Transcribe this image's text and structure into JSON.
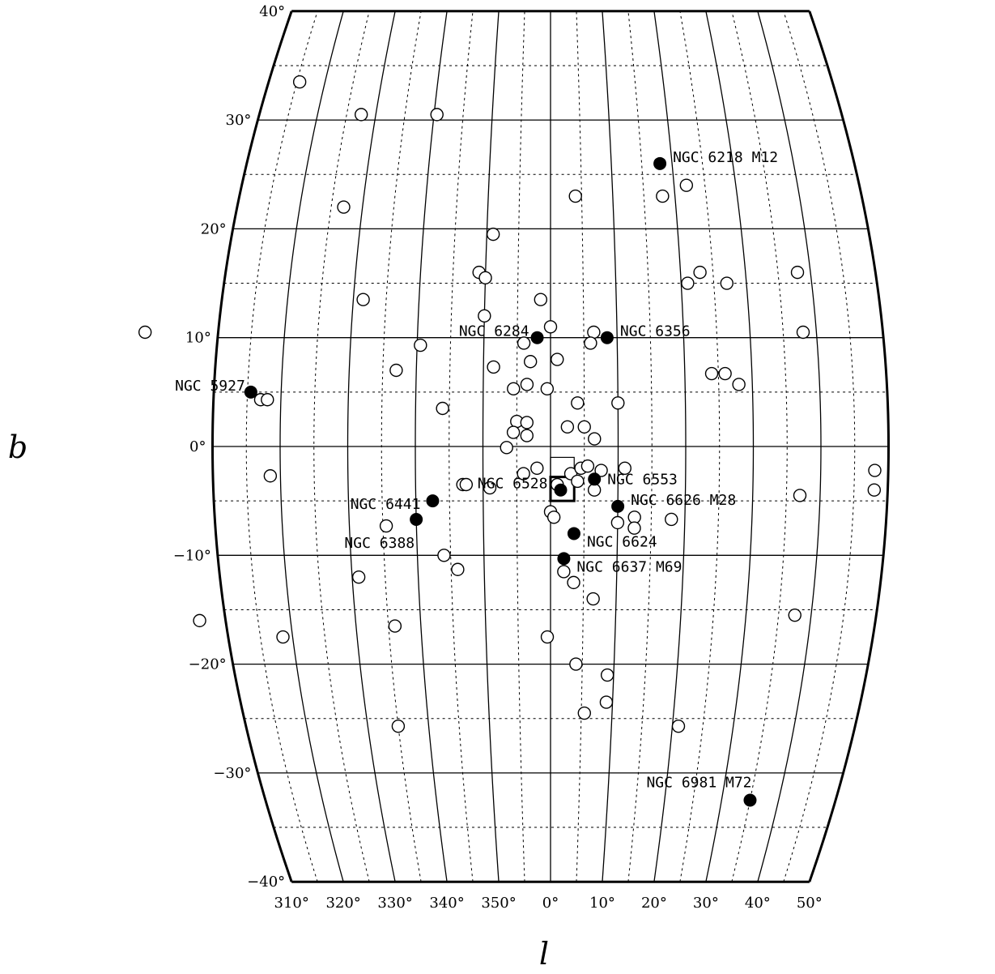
{
  "chart_data": {
    "type": "scatter",
    "projection": "sinusoidal",
    "xlabel": "l",
    "ylabel": "b",
    "xlim": [
      -50,
      50
    ],
    "ylim": [
      -40,
      40
    ],
    "x_range_deg": [
      310,
      50
    ],
    "y_range_deg": [
      -40,
      40
    ],
    "meridian_step_deg": 5,
    "parallel_step_deg": 5,
    "solid_parallels_step_deg": 10,
    "x_ticks": [
      "310°",
      "320°",
      "330°",
      "340°",
      "350°",
      "0°",
      "10°",
      "20°",
      "30°",
      "40°",
      "50°"
    ],
    "x_tick_values": [
      -50,
      -40,
      -30,
      -20,
      -10,
      0,
      10,
      20,
      30,
      40,
      50
    ],
    "y_ticks": [
      "40°",
      "30°",
      "20°",
      "10°",
      "0°",
      "−10°",
      "−20°",
      "−30°",
      "−40°"
    ],
    "y_tick_values": [
      40,
      30,
      20,
      10,
      0,
      -10,
      -20,
      -30,
      -40
    ],
    "grid": true,
    "highlighted_clusters": [
      {
        "name": "NGC 6218 M12",
        "l": 18.0,
        "b": 26.0
      },
      {
        "name": "NGC 6356",
        "l": 8.5,
        "b": 10.0
      },
      {
        "name": "NGC 6284",
        "l": -2.0,
        "b": 10.0
      },
      {
        "name": "NGC 5927",
        "l": -44.5,
        "b": 5.0
      },
      {
        "name": "NGC 6553",
        "l": 6.5,
        "b": -3.0
      },
      {
        "name": "NGC 6528",
        "l": 1.5,
        "b": -4.0
      },
      {
        "name": "NGC 6626 M28",
        "l": 10.0,
        "b": -5.5
      },
      {
        "name": "NGC 6441",
        "l": -17.5,
        "b": -5.0
      },
      {
        "name": "NGC 6388",
        "l": -20.0,
        "b": -6.7
      },
      {
        "name": "NGC 6624",
        "l": 3.5,
        "b": -8.0
      },
      {
        "name": "NGC 6637 M69",
        "l": 2.0,
        "b": -10.3
      },
      {
        "name": "NGC 6981 M72",
        "l": 35.0,
        "b": -32.5
      }
    ],
    "other_clusters": [
      [
        -44.5,
        33.5
      ],
      [
        -32.5,
        30.5
      ],
      [
        -19.5,
        30.5
      ],
      [
        -33.0,
        22.0
      ],
      [
        4.0,
        23.0
      ],
      [
        18.0,
        23.0
      ],
      [
        22.0,
        24.0
      ],
      [
        -9.0,
        19.5
      ],
      [
        -11.0,
        16.0
      ],
      [
        -10.0,
        15.5
      ],
      [
        21.0,
        15.0
      ],
      [
        23.0,
        16.0
      ],
      [
        27.0,
        15.0
      ],
      [
        38.0,
        16.0
      ],
      [
        -28.5,
        13.5
      ],
      [
        -10.0,
        12.0
      ],
      [
        -1.5,
        13.5
      ],
      [
        0.0,
        11.0
      ],
      [
        6.5,
        10.5
      ],
      [
        6.0,
        9.5
      ],
      [
        -61.0,
        10.5
      ],
      [
        38.0,
        10.5
      ],
      [
        -19.5,
        9.3
      ],
      [
        -4.0,
        9.5
      ],
      [
        1.0,
        8.0
      ],
      [
        -3.0,
        7.8
      ],
      [
        -8.5,
        7.3
      ],
      [
        -23.0,
        7.0
      ],
      [
        24.0,
        6.7
      ],
      [
        26.0,
        6.7
      ],
      [
        28.0,
        5.7
      ],
      [
        -3.5,
        5.7
      ],
      [
        -5.5,
        5.3
      ],
      [
        -0.5,
        5.3
      ],
      [
        -43.0,
        4.3
      ],
      [
        -42.0,
        4.3
      ],
      [
        4.0,
        4.0
      ],
      [
        10.0,
        4.0
      ],
      [
        -16.0,
        3.5
      ],
      [
        -5.0,
        2.3
      ],
      [
        -3.5,
        2.2
      ],
      [
        -5.5,
        1.3
      ],
      [
        -3.5,
        1.0
      ],
      [
        2.5,
        1.8
      ],
      [
        5.0,
        1.8
      ],
      [
        6.5,
        0.7
      ],
      [
        -6.5,
        -0.1
      ],
      [
        3.0,
        -2.5
      ],
      [
        4.5,
        -2.0
      ],
      [
        5.5,
        -1.8
      ],
      [
        7.5,
        -2.2
      ],
      [
        11.0,
        -2.0
      ],
      [
        48.0,
        -2.2
      ],
      [
        -41.5,
        -2.7
      ],
      [
        -13.0,
        -3.5
      ],
      [
        -12.5,
        -3.5
      ],
      [
        -9.0,
        -3.8
      ],
      [
        -4.0,
        -2.5
      ],
      [
        -2.0,
        -2.0
      ],
      [
        1.0,
        -3.5
      ],
      [
        4.0,
        -3.2
      ],
      [
        6.5,
        -4.0
      ],
      [
        48.0,
        -4.0
      ],
      [
        37.0,
        -4.5
      ],
      [
        0.0,
        -6.0
      ],
      [
        0.5,
        -6.5
      ],
      [
        12.5,
        -6.5
      ],
      [
        10.0,
        -7.0
      ],
      [
        12.5,
        -7.5
      ],
      [
        18.0,
        -6.7
      ],
      [
        -24.5,
        -7.3
      ],
      [
        -16.0,
        -10.0
      ],
      [
        -14.0,
        -11.3
      ],
      [
        2.0,
        -11.5
      ],
      [
        3.5,
        -12.5
      ],
      [
        -29.0,
        -12.0
      ],
      [
        6.5,
        -14.0
      ],
      [
        -54.0,
        -16.0
      ],
      [
        -24.0,
        -16.5
      ],
      [
        37.5,
        -15.5
      ],
      [
        -41.5,
        -17.5
      ],
      [
        -0.5,
        -17.5
      ],
      [
        4.0,
        -20.0
      ],
      [
        9.0,
        -21.0
      ],
      [
        9.0,
        -23.5
      ],
      [
        5.5,
        -24.5
      ],
      [
        -25.0,
        -25.7
      ],
      [
        21.0,
        -25.7
      ]
    ],
    "boxes": [
      {
        "l_min": 0.0,
        "l_max": 3.5,
        "b_min": -2.8,
        "b_max": -1.0,
        "style": "thin"
      },
      {
        "l_min": 0.0,
        "l_max": 3.5,
        "b_min": -5.0,
        "b_max": -2.8,
        "style": "thick"
      }
    ]
  }
}
